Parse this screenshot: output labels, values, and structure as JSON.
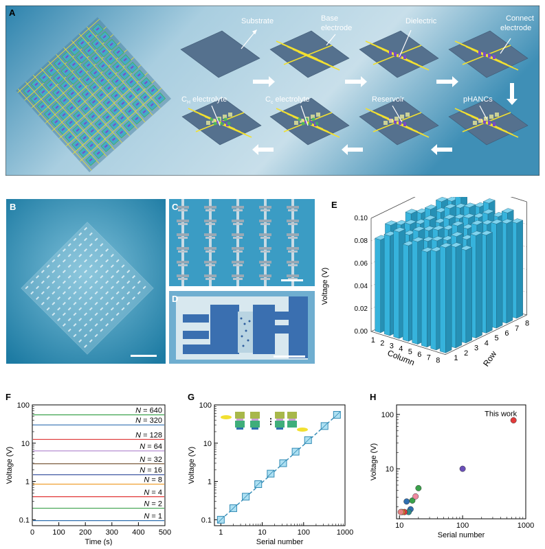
{
  "panel_labels": {
    "a": "A",
    "b": "B",
    "c": "C",
    "d": "D",
    "e": "E",
    "f": "F",
    "g": "G",
    "h": "H"
  },
  "panel_a": {
    "steps": [
      "Substrate",
      "Base electrode",
      "Dielectric",
      "Connect electrode",
      "pHANCs",
      "Reservoir",
      "C_c electrolyte",
      "C_H electrolyte"
    ],
    "step_labels": {
      "substrate": "Substrate",
      "base_line1": "Base",
      "base_line2": "electrode",
      "dielectric": "Dielectric",
      "connect_line1": "Connect",
      "connect_line2": "electrode",
      "phancs": "pHANCs",
      "reservoir": "Reservoir",
      "cc_main": "C",
      "cc_sub": "c",
      "cc_rest": " electrolyte",
      "ch_main": "C",
      "ch_sub": "H",
      "ch_rest": " electrolyte"
    }
  },
  "colors": {
    "banner": "#9fc6dc",
    "platform": "#55718e",
    "electrode": "#f2e030",
    "dielectric": "#7b4ac6",
    "green": "#3db65a",
    "bar": "#35b2d8",
    "photo_blue": "#2d8fb4"
  },
  "panel_e": {
    "ylabel": "Voltage (V)",
    "xlabel": "Column",
    "zlabel": "Row",
    "yticks": [
      "0.00",
      "0.02",
      "0.04",
      "0.06",
      "0.08",
      "0.10"
    ],
    "column_ticks": [
      "1",
      "2",
      "3",
      "4",
      "5",
      "6",
      "7",
      "8"
    ],
    "row_ticks": [
      "1",
      "2",
      "3",
      "4",
      "5",
      "6",
      "7",
      "8"
    ]
  },
  "chart_data": [
    {
      "panel": "F",
      "type": "line",
      "xlabel": "Time (s)",
      "ylabel": "Voltage (V)",
      "xlim": [
        0,
        500
      ],
      "ylim": [
        0.07,
        100
      ],
      "yscale": "log",
      "xticks": [
        "0",
        "100",
        "200",
        "300",
        "400",
        "500"
      ],
      "yticks": [
        "0.1",
        "1",
        "10",
        "100"
      ],
      "series": [
        {
          "name": "N = 640",
          "value": 55,
          "color": "#3aa14a"
        },
        {
          "name": "N = 320",
          "value": 30,
          "color": "#2f6fb0"
        },
        {
          "name": "N = 128",
          "value": 12.5,
          "color": "#e04444"
        },
        {
          "name": "N = 64",
          "value": 6.3,
          "color": "#b58bd1"
        },
        {
          "name": "N = 32",
          "value": 2.9,
          "color": "#7a5a3a"
        },
        {
          "name": "N = 16",
          "value": 1.5,
          "color": "#3b55a0"
        },
        {
          "name": "N = 8",
          "value": 0.85,
          "color": "#f0a030"
        },
        {
          "name": "N = 4",
          "value": 0.4,
          "color": "#e03030"
        },
        {
          "name": "N = 2",
          "value": 0.2,
          "color": "#3aa14a"
        },
        {
          "name": "N = 1",
          "value": 0.095,
          "color": "#2f6fb0"
        }
      ]
    },
    {
      "panel": "G",
      "type": "scatter",
      "xlabel": "Serial number",
      "ylabel": "Voltage (V)",
      "xscale": "log",
      "yscale": "log",
      "xlim": [
        0.7,
        1000
      ],
      "ylim": [
        0.07,
        100
      ],
      "xticks": [
        "1",
        "10",
        "100",
        "1000"
      ],
      "yticks": [
        "0.1",
        "1",
        "10",
        "100"
      ],
      "x": [
        1,
        2,
        4,
        8,
        16,
        32,
        64,
        128,
        320,
        640
      ],
      "y": [
        0.1,
        0.2,
        0.4,
        0.85,
        1.6,
        3.0,
        6.0,
        12.0,
        28,
        55
      ]
    },
    {
      "panel": "H",
      "type": "scatter",
      "xlabel": "Serial number",
      "ylabel": "Voltage (V)",
      "xscale": "log",
      "yscale": "log",
      "xlim": [
        9,
        1000
      ],
      "ylim": [
        1.2,
        150
      ],
      "xticks": [
        "10",
        "100",
        "1000"
      ],
      "yticks": [
        "10",
        "100"
      ],
      "annotation": "This work",
      "points": [
        {
          "x": 640,
          "y": 78,
          "color": "#e23b3b"
        },
        {
          "x": 100,
          "y": 10,
          "color": "#6a4fb8"
        },
        {
          "x": 20,
          "y": 4.4,
          "color": "#3aa14a"
        },
        {
          "x": 16,
          "y": 2.6,
          "color": "#3aa14a"
        },
        {
          "x": 13,
          "y": 2.5,
          "color": "#2f6fb0"
        },
        {
          "x": 18,
          "y": 3.1,
          "color": "#f08aa0"
        },
        {
          "x": 15,
          "y": 1.8,
          "color": "#2f6fb0"
        },
        {
          "x": 14,
          "y": 1.6,
          "color": "#2f8a8a"
        },
        {
          "x": 12,
          "y": 1.6,
          "color": "#e23b3b"
        },
        {
          "x": 11,
          "y": 1.6,
          "color": "#f0a030"
        },
        {
          "x": 10.5,
          "y": 1.6,
          "color": "#e88080"
        }
      ]
    }
  ]
}
